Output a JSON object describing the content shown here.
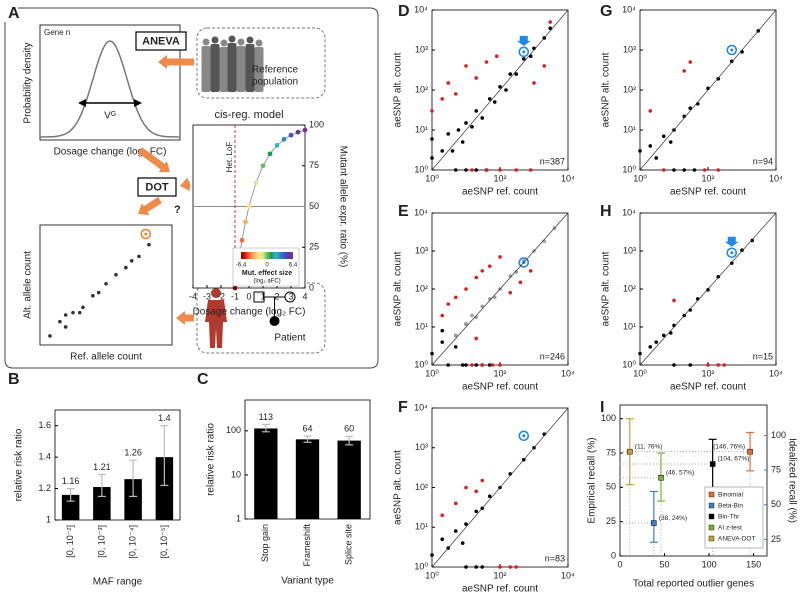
{
  "panel_labels": [
    "A",
    "B",
    "C",
    "D",
    "E",
    "F",
    "G",
    "H",
    "I"
  ],
  "diagram": {
    "gene": "Gene n",
    "density_label": "Probability density",
    "dosage_label": "Dosage change (log₂ FC)",
    "variance": "Vᴳ",
    "aneva": "ANEVA",
    "reference": [
      "Reference",
      "population"
    ],
    "dot": "DOT",
    "question": "?",
    "patient": "Patient"
  },
  "chart_data": [
    {
      "type": "line",
      "title": "cis-reg. model",
      "xlabel": "Dosage change (log₂ FC)",
      "ylabel": "Mutant allele expr. ratio (%)",
      "xlim": [
        -4,
        4
      ],
      "xticks": [
        -4,
        -3,
        -2,
        -1,
        0,
        1,
        2,
        3,
        4
      ],
      "ylim": [
        0,
        100
      ],
      "yticks": [
        0,
        25,
        50,
        75,
        100
      ],
      "hline": 50,
      "vline": -1,
      "vline_label": "Het. LoF",
      "colorbar": {
        "label": "Mut. effect size",
        "sublabel": "(log₂ aFC)",
        "ticks": [
          -6.4,
          0,
          6.4
        ]
      },
      "series": [
        {
          "x": [
            -1,
            -0.75,
            -0.5,
            -0.25,
            0,
            0.5,
            1,
            1.5,
            2,
            2.5,
            3,
            3.5,
            4
          ],
          "values": [
            0,
            15.9,
            29.3,
            40.5,
            50,
            64.6,
            75,
            82.3,
            87.5,
            91.2,
            93.75,
            95.6,
            96.9
          ],
          "colors": [
            "#8b0000",
            "#d7191c",
            "#f46d43",
            "#fdae61",
            "#fee08b",
            "#d9ef8b",
            "#66bd63",
            "#1a9850",
            "#35b4c8",
            "#3288bd",
            "#4050c0",
            "#5e3c99",
            "#7b2d9a"
          ]
        }
      ]
    },
    {
      "type": "scatter",
      "xlabel": "Ref. allele count",
      "ylabel": "Alt. allele count",
      "log_x": true,
      "log_y": true,
      "xlim": [
        0.5,
        5000
      ],
      "ylim": [
        0.5,
        5000
      ],
      "series": [
        {
          "color": "#333333",
          "x": [
            1,
            2,
            3,
            5,
            10,
            20,
            30,
            50,
            100,
            200,
            300,
            500,
            1000,
            3,
            8
          ],
          "values": [
            1,
            3,
            2,
            6,
            9,
            22,
            28,
            55,
            110,
            190,
            320,
            450,
            1100,
            5,
            6
          ]
        },
        {
          "color": "#e8833a",
          "marker": "ring",
          "x": [
            800
          ],
          "values": [
            2500
          ]
        }
      ]
    },
    {
      "type": "bar",
      "xlabel": "MAF range",
      "ylabel": "relative risk ratio",
      "color": "#000000",
      "categories": [
        "[0, 10⁻²]",
        "[0, 10⁻³]",
        "[0, 10⁻⁴]",
        "[0, 10⁻⁵]"
      ],
      "values": [
        1.16,
        1.21,
        1.26,
        1.4
      ],
      "ci": [
        [
          1.12,
          1.2
        ],
        [
          1.15,
          1.29
        ],
        [
          1.15,
          1.38
        ],
        [
          1.22,
          1.6
        ]
      ],
      "ylim": [
        1,
        1.7
      ],
      "yticks": [
        1,
        1.2,
        1.4,
        1.6
      ]
    },
    {
      "type": "bar",
      "xlabel": "Variant type",
      "ylabel": "relative risk ratio",
      "color": "#000000",
      "log_y": true,
      "categories": [
        "Stop gain",
        "Frameshift",
        "Splice site"
      ],
      "values": [
        113,
        64,
        60
      ],
      "ci": [
        [
          95,
          140
        ],
        [
          55,
          76
        ],
        [
          48,
          75
        ]
      ],
      "ylim": [
        1,
        500
      ],
      "yticks": [
        1,
        10,
        100
      ]
    },
    {
      "type": "scatter",
      "xlabel": "aeSNP ref. count",
      "ylabel": "aeSNP alt. count",
      "log_x": true,
      "log_y": true,
      "diagonal": true,
      "annotation": "n=387",
      "xlim": [
        1,
        10000
      ],
      "ylim": [
        1,
        10000
      ],
      "xticks": [
        {
          "value": 1,
          "label": "10⁰"
        },
        {
          "value": 100,
          "label": "10²"
        },
        {
          "value": 10000,
          "label": "10⁴"
        }
      ],
      "yticks": [
        {
          "value": 1,
          "label": "10⁰"
        },
        {
          "value": 10,
          "label": "10¹"
        },
        {
          "value": 100,
          "label": "10²"
        },
        {
          "value": 1000,
          "label": "10³"
        },
        {
          "value": 10000,
          "label": "10⁴"
        }
      ],
      "series": [
        {
          "color": "#000000",
          "x": [
            1,
            1,
            2,
            3,
            4,
            6,
            8,
            10,
            15,
            20,
            30,
            50,
            70,
            100,
            150,
            200,
            300,
            500,
            800,
            1000,
            2000,
            3000,
            5,
            10,
            20,
            40
          ],
          "values": [
            2,
            6,
            3,
            8,
            3,
            10,
            5,
            15,
            12,
            30,
            20,
            60,
            50,
            120,
            100,
            250,
            250,
            600,
            700,
            1100,
            2000,
            3500,
            1,
            1,
            1,
            1
          ]
        },
        {
          "color": "#e41a1c",
          "x": [
            1,
            2,
            3,
            5,
            10,
            20,
            40,
            80,
            15,
            40,
            100,
            300,
            800,
            1000,
            2000,
            3000
          ],
          "values": [
            30,
            60,
            150,
            80,
            400,
            200,
            500,
            700,
            1,
            1,
            1,
            1,
            1,
            150,
            400,
            5000
          ]
        },
        {
          "color": "#1e88e5",
          "marker": "ring",
          "arrow": true,
          "x": [
            500
          ],
          "values": [
            900
          ]
        }
      ]
    },
    {
      "type": "scatter",
      "xlabel": "aeSNP ref. count",
      "ylabel": "aeSNP alt. count",
      "log_x": true,
      "log_y": true,
      "diagonal": true,
      "annotation": "n=246",
      "xlim": [
        1,
        10000
      ],
      "ylim": [
        1,
        10000
      ],
      "xticks": [
        {
          "value": 1,
          "label": "10⁰"
        },
        {
          "value": 100,
          "label": "10²"
        },
        {
          "value": 10000,
          "label": "10⁴"
        }
      ],
      "yticks": [
        {
          "value": 1,
          "label": "10⁰"
        },
        {
          "value": 10,
          "label": "10¹"
        },
        {
          "value": 100,
          "label": "10²"
        },
        {
          "value": 1000,
          "label": "10³"
        },
        {
          "value": 10000,
          "label": "10⁴"
        }
      ],
      "series": [
        {
          "color": "#000000",
          "x": [
            1,
            2,
            3,
            5,
            8,
            10,
            20,
            30,
            50,
            2,
            5,
            10
          ],
          "values": [
            2,
            4,
            1,
            6,
            1,
            12,
            1,
            1,
            1,
            8,
            3,
            1
          ]
        },
        {
          "color": "#9e9e9e",
          "x": [
            5,
            10,
            20,
            30,
            50,
            100,
            200,
            300,
            500,
            1000,
            2000,
            4000,
            15,
            70
          ],
          "values": [
            6,
            12,
            18,
            35,
            55,
            100,
            220,
            280,
            550,
            1000,
            1800,
            4000,
            20,
            60
          ]
        },
        {
          "color": "#e41a1c",
          "x": [
            2,
            3,
            5,
            10,
            20,
            30,
            50,
            100,
            200,
            400,
            800,
            15,
            30,
            60,
            100,
            20
          ],
          "values": [
            20,
            40,
            60,
            100,
            200,
            300,
            400,
            700,
            80,
            150,
            300,
            1,
            1,
            1,
            1,
            5
          ]
        },
        {
          "color": "#1e88e5",
          "marker": "ring",
          "x": [
            500
          ],
          "values": [
            500
          ]
        }
      ]
    },
    {
      "type": "scatter",
      "xlabel": "aeSNP ref. count",
      "ylabel": "aeSNP alt. count",
      "log_x": true,
      "log_y": true,
      "diagonal": true,
      "annotation": "n=83",
      "xlim": [
        1,
        10000
      ],
      "ylim": [
        1,
        10000
      ],
      "xticks": [
        {
          "value": 1,
          "label": "10⁰"
        },
        {
          "value": 100,
          "label": "10²"
        },
        {
          "value": 10000,
          "label": "10⁴"
        }
      ],
      "yticks": [
        {
          "value": 1,
          "label": "10⁰"
        },
        {
          "value": 10,
          "label": "10¹"
        },
        {
          "value": 100,
          "label": "10²"
        },
        {
          "value": 1000,
          "label": "10³"
        },
        {
          "value": 10000,
          "label": "10⁴"
        }
      ],
      "series": [
        {
          "color": "#000000",
          "x": [
            1,
            2,
            3,
            5,
            8,
            10,
            20,
            30,
            50,
            100,
            200,
            500,
            1000,
            2000,
            10,
            20,
            30
          ],
          "values": [
            2,
            5,
            3,
            8,
            4,
            12,
            25,
            30,
            60,
            100,
            220,
            500,
            1000,
            2200,
            1,
            1,
            1
          ]
        },
        {
          "color": "#e41a1c",
          "x": [
            2,
            5,
            10,
            20,
            30,
            100,
            200,
            300
          ],
          "values": [
            20,
            40,
            100,
            80,
            150,
            1,
            1,
            1
          ]
        },
        {
          "color": "#1e88e5",
          "marker": "ring",
          "x": [
            500
          ],
          "values": [
            2000
          ]
        }
      ]
    },
    {
      "type": "scatter",
      "xlabel": "aeSNP ref. count",
      "ylabel": "aeSNP alt. count",
      "log_x": true,
      "log_y": true,
      "diagonal": true,
      "annotation": "n=94",
      "xlim": [
        1,
        10000
      ],
      "ylim": [
        1,
        10000
      ],
      "xticks": [
        {
          "value": 1,
          "label": "10⁰"
        },
        {
          "value": 100,
          "label": "10²"
        },
        {
          "value": 10000,
          "label": "10⁴"
        }
      ],
      "yticks": [
        {
          "value": 1,
          "label": "10⁰"
        },
        {
          "value": 10,
          "label": "10¹"
        },
        {
          "value": 100,
          "label": "10²"
        },
        {
          "value": 1000,
          "label": "10³"
        },
        {
          "value": 10000,
          "label": "10⁴"
        }
      ],
      "series": [
        {
          "color": "#000000",
          "x": [
            1,
            2,
            3,
            5,
            8,
            10,
            20,
            30,
            50,
            100,
            200,
            500,
            1000,
            3000,
            10,
            20,
            40
          ],
          "values": [
            3,
            4,
            2,
            7,
            5,
            10,
            22,
            35,
            45,
            110,
            190,
            520,
            900,
            3000,
            1,
            1,
            1
          ]
        },
        {
          "color": "#e41a1c",
          "x": [
            20,
            30,
            80,
            200,
            2,
            5
          ],
          "values": [
            300,
            500,
            1,
            1,
            30,
            1
          ]
        },
        {
          "color": "#1e88e5",
          "marker": "ring",
          "x": [
            500
          ],
          "values": [
            1000
          ]
        }
      ]
    },
    {
      "type": "scatter",
      "xlabel": "aeSNP ref. count",
      "ylabel": "aeSNP alt. count",
      "log_x": true,
      "log_y": true,
      "diagonal": true,
      "annotation": "n=15",
      "xlim": [
        1,
        10000
      ],
      "ylim": [
        1,
        10000
      ],
      "xticks": [
        {
          "value": 1,
          "label": "10⁰"
        },
        {
          "value": 100,
          "label": "10²"
        },
        {
          "value": 10000,
          "label": "10⁴"
        }
      ],
      "yticks": [
        {
          "value": 1,
          "label": "10⁰"
        },
        {
          "value": 10,
          "label": "10¹"
        },
        {
          "value": 100,
          "label": "10²"
        },
        {
          "value": 1000,
          "label": "10³"
        },
        {
          "value": 10000,
          "label": "10⁴"
        }
      ],
      "series": [
        {
          "color": "#000000",
          "x": [
            1,
            2,
            3,
            5,
            8,
            10,
            20,
            30,
            50,
            100,
            200,
            500,
            1000,
            2000,
            10,
            30
          ],
          "values": [
            2,
            3,
            4,
            6,
            7,
            11,
            20,
            28,
            55,
            95,
            210,
            480,
            1050,
            1900,
            1,
            1
          ]
        },
        {
          "color": "#e41a1c",
          "x": [
            100,
            200,
            10,
            300
          ],
          "values": [
            1,
            1,
            50,
            1
          ]
        },
        {
          "color": "#1e88e5",
          "marker": "ring",
          "arrow": true,
          "x": [
            500
          ],
          "values": [
            900
          ]
        }
      ]
    },
    {
      "type": "errorbar",
      "xlabel": "Total reported outlier genes",
      "ylabel": "Empirical recall (%)",
      "y2label": "Idealized recall (%)",
      "y2color": "#3b7fc4",
      "xlim": [
        0,
        165
      ],
      "xticks": [
        0,
        50,
        100,
        150
      ],
      "ylim": [
        0,
        110
      ],
      "yticks": [
        0,
        25,
        50,
        75,
        100
      ],
      "y2lim": [
        13,
        122
      ],
      "y2ticks": [
        25,
        50,
        75,
        100
      ],
      "legend": "lower right",
      "series": [
        {
          "name": "Binomial",
          "color": "#e0703a",
          "x": [
            146
          ],
          "values": [
            76
          ],
          "ci": [
            [
              62,
              90
            ]
          ],
          "label": "(146, 76%)"
        },
        {
          "name": "Beta-Bin",
          "color": "#3b7fc4",
          "x": [
            38
          ],
          "values": [
            24
          ],
          "ci": [
            [
              10,
              47
            ]
          ],
          "label": "(38, 24%)"
        },
        {
          "name": "Bin-Thr",
          "color": "#000000",
          "x": [
            104
          ],
          "values": [
            67
          ],
          "ci": [
            [
              45,
              85
            ]
          ],
          "label": "(104, 67%)"
        },
        {
          "name": "AI z-test",
          "color": "#7ab33a",
          "x": [
            46
          ],
          "values": [
            57
          ],
          "ci": [
            [
              40,
              75
            ]
          ],
          "label": "(46, 57%)"
        },
        {
          "name": "ANEVA-DOT",
          "color": "#c8a33a",
          "x": [
            11
          ],
          "values": [
            76
          ],
          "ci": [
            [
              52,
              100
            ]
          ],
          "label": "(11, 76%)"
        }
      ]
    }
  ]
}
